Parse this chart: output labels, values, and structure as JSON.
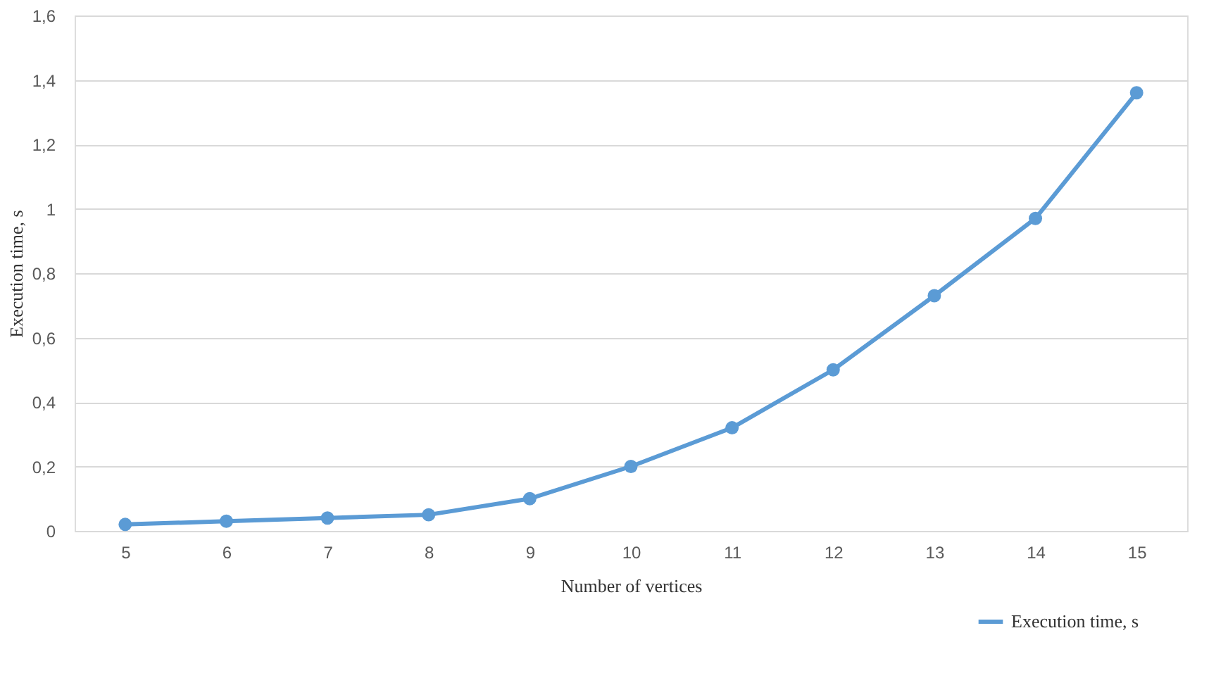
{
  "chart_data": {
    "type": "line",
    "xlabel": "Number of vertices",
    "ylabel": "Execution time, s",
    "categories": [
      "5",
      "6",
      "7",
      "8",
      "9",
      "10",
      "11",
      "12",
      "13",
      "14",
      "15"
    ],
    "series": [
      {
        "name": "Execution time, s",
        "color": "#5b9bd5",
        "values": [
          0.02,
          0.03,
          0.04,
          0.05,
          0.1,
          0.2,
          0.32,
          0.5,
          0.73,
          0.97,
          1.36
        ]
      }
    ],
    "ylim": [
      0,
      1.6
    ],
    "yticks": [
      0,
      {
        "value": 0.2,
        "label": "0,2"
      },
      {
        "value": 0.4,
        "label": "0,4"
      },
      {
        "value": 0.6,
        "label": "0,6"
      },
      {
        "value": 0.8,
        "label": "0,8"
      },
      1,
      {
        "value": 1.2,
        "label": "1,2"
      },
      {
        "value": 1.4,
        "label": "1,4"
      },
      {
        "value": 1.6,
        "label": "1,6"
      }
    ],
    "grid": "y",
    "legend": "bottom right",
    "marker": "circle",
    "line_style": "solid"
  }
}
